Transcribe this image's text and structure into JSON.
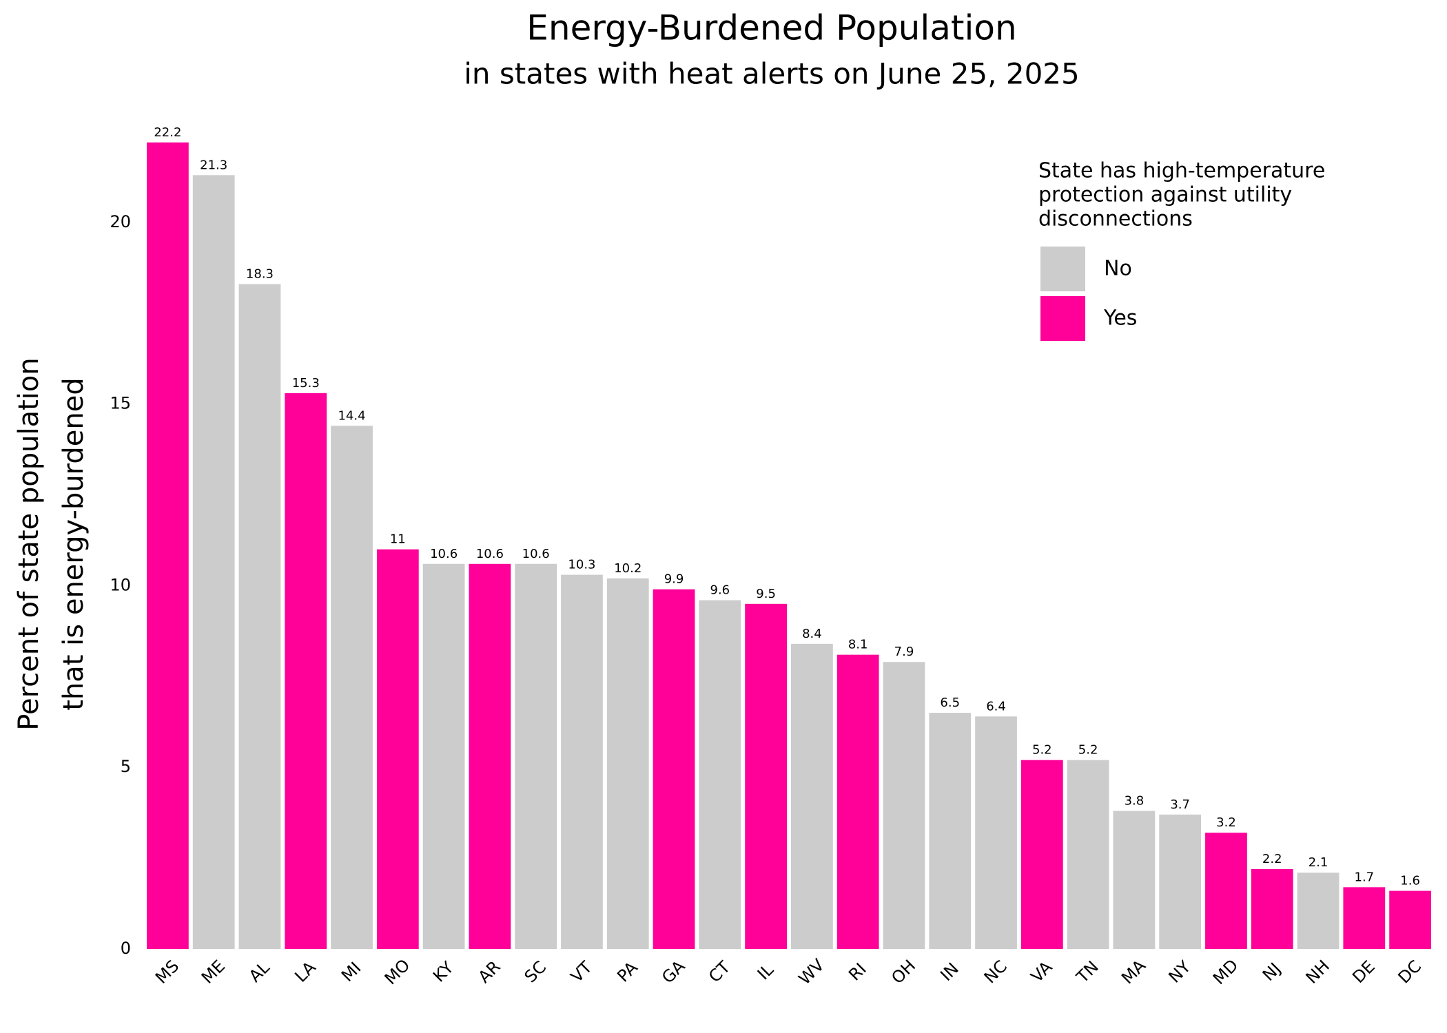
{
  "chart_data": {
    "type": "bar",
    "title": "Energy-Burdened Population",
    "subtitle": "in states with heat alerts on June 25, 2025",
    "y_label": [
      "Percent of state population",
      "that is energy-burdened"
    ],
    "categories": [
      "MS",
      "ME",
      "AL",
      "LA",
      "MI",
      "MO",
      "KY",
      "AR",
      "SC",
      "VT",
      "PA",
      "GA",
      "CT",
      "IL",
      "WV",
      "RI",
      "OH",
      "IN",
      "NC",
      "VA",
      "TN",
      "MA",
      "NY",
      "MD",
      "NJ",
      "NH",
      "DE",
      "DC"
    ],
    "values": [
      22.2,
      21.3,
      18.3,
      15.3,
      14.4,
      11,
      10.6,
      10.6,
      10.6,
      10.3,
      10.2,
      9.9,
      9.6,
      9.5,
      8.4,
      8.1,
      7.9,
      6.5,
      6.4,
      5.2,
      5.2,
      3.8,
      3.7,
      3.2,
      2.2,
      2.1,
      1.7,
      1.6
    ],
    "protection": [
      "Yes",
      "No",
      "No",
      "Yes",
      "No",
      "Yes",
      "No",
      "Yes",
      "No",
      "No",
      "No",
      "Yes",
      "No",
      "Yes",
      "No",
      "Yes",
      "No",
      "No",
      "No",
      "Yes",
      "No",
      "No",
      "No",
      "Yes",
      "Yes",
      "No",
      "Yes",
      "Yes"
    ],
    "legend": {
      "title": [
        "State has high-temperature",
        "protection against utility",
        "disconnections"
      ],
      "entries": [
        {
          "label": "No",
          "color": "#cccccc"
        },
        {
          "label": "Yes",
          "color": "#ff0099"
        }
      ],
      "position": "upper right"
    },
    "ylim": [
      0,
      22.5
    ],
    "yticks": [
      0,
      5,
      10,
      15,
      20
    ],
    "grid": false
  }
}
